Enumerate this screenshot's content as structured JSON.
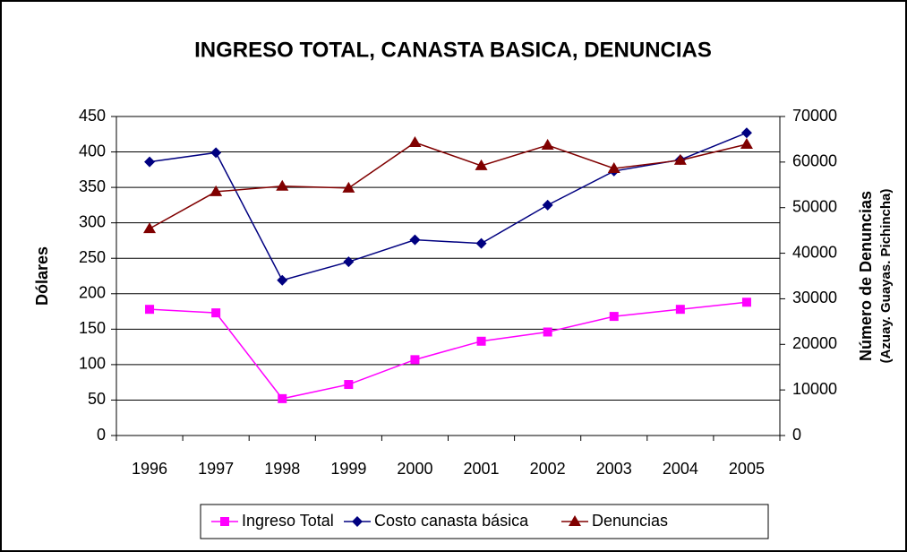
{
  "chart_data": {
    "type": "line",
    "title": "INGRESO TOTAL, CANASTA BASICA, DENUNCIAS",
    "ylabel": "Dólares",
    "y2label": "Número de Denuncias",
    "y2sublabel": "(Azuay. Guayas. Pichincha)",
    "categories": [
      "1996",
      "1997",
      "1998",
      "1999",
      "2000",
      "2001",
      "2002",
      "2003",
      "2004",
      "2005"
    ],
    "series": [
      {
        "name": "Ingreso Total",
        "color": "#ff00ff",
        "marker": "square",
        "values": [
          178,
          173,
          52,
          72,
          107,
          133,
          146,
          168,
          178,
          188
        ]
      },
      {
        "name": "Costo canasta básica",
        "color": "#000080",
        "marker": "diamond",
        "values": [
          386,
          399,
          219,
          245,
          276,
          271,
          325,
          373,
          389,
          427
        ]
      },
      {
        "name": "Denuncias",
        "color": "#800000",
        "marker": "triangle",
        "axis": "y2",
        "values": [
          45400,
          53500,
          54700,
          54300,
          64300,
          59200,
          63700,
          58600,
          60400,
          63900
        ]
      }
    ],
    "ylim": [
      0,
      450
    ],
    "yticks": [
      0,
      50,
      100,
      150,
      200,
      250,
      300,
      350,
      400,
      450
    ],
    "y2lim": [
      0,
      70000
    ],
    "y2ticks": [
      0,
      10000,
      20000,
      30000,
      40000,
      50000,
      60000,
      70000
    ],
    "grid": true,
    "legend": "bottom"
  }
}
